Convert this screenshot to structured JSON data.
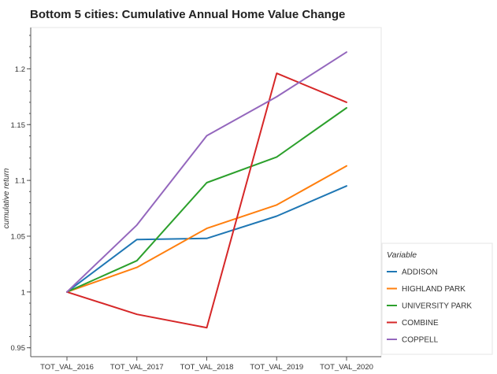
{
  "chart_data": {
    "type": "line",
    "title": "Bottom 5 cities: Cumulative Annual Home Value Change",
    "xlabel": "",
    "ylabel": "cumulative return",
    "categories": [
      "TOT_VAL_2016",
      "TOT_VAL_2017",
      "TOT_VAL_2018",
      "TOT_VAL_2019",
      "TOT_VAL_2020"
    ],
    "yticks": [
      0.95,
      1,
      1.05,
      1.1,
      1.15,
      1.2
    ],
    "ytick_labels": [
      "0.95",
      "1",
      "1.05",
      "1.1",
      "1.15",
      "1.2"
    ],
    "ylim": [
      0.942,
      1.237
    ],
    "legend_title": "Variable",
    "legend_position": "bottom-right outside",
    "grid": false,
    "series": [
      {
        "name": "ADDISON",
        "color": "#1f77b4",
        "values": [
          1.0,
          1.047,
          1.048,
          1.068,
          1.095
        ]
      },
      {
        "name": "HIGHLAND PARK",
        "color": "#ff7f0e",
        "values": [
          1.0,
          1.022,
          1.057,
          1.078,
          1.113
        ]
      },
      {
        "name": "UNIVERSITY PARK",
        "color": "#2ca02c",
        "values": [
          1.0,
          1.028,
          1.098,
          1.121,
          1.165
        ]
      },
      {
        "name": "COMBINE",
        "color": "#d62728",
        "values": [
          1.0,
          0.98,
          0.968,
          1.196,
          1.17
        ]
      },
      {
        "name": "COPPELL",
        "color": "#9467bd",
        "values": [
          1.0,
          1.06,
          1.14,
          1.175,
          1.215
        ]
      }
    ]
  }
}
